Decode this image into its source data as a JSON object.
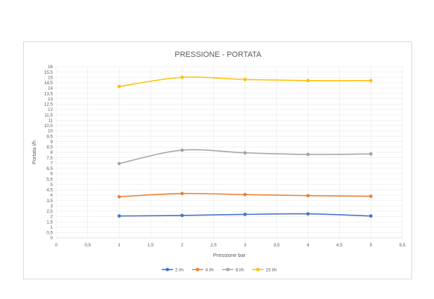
{
  "chart_data": {
    "type": "line",
    "title": "PRESSIONE - PORTATA",
    "xlabel": "Pressione bar",
    "ylabel": "Portata l/h",
    "xlim": [
      0,
      5.5
    ],
    "ylim": [
      0,
      16
    ],
    "x_ticks": [
      "0",
      "0,5",
      "1",
      "1,5",
      "2",
      "2,5",
      "3",
      "3,5",
      "4",
      "4,5",
      "5",
      "5,5"
    ],
    "y_ticks": [
      "0",
      "0,5",
      "1",
      "1,5",
      "2",
      "2,5",
      "3",
      "3,5",
      "4",
      "4,5",
      "5",
      "5,5",
      "6",
      "6,5",
      "7",
      "7,5",
      "8",
      "8,5",
      "9",
      "9,5",
      "10",
      "10,5",
      "11",
      "11,5",
      "12",
      "12,5",
      "13",
      "13,5",
      "14",
      "14,5",
      "15",
      "15,5",
      "16"
    ],
    "grid": true,
    "smooth": true,
    "legend_position": "bottom",
    "x": [
      1,
      2,
      3,
      4,
      5
    ],
    "series": [
      {
        "name": "2 l/h",
        "color": "#4472C4",
        "values": [
          2.05,
          2.1,
          2.2,
          2.25,
          2.05
        ]
      },
      {
        "name": "4 l/h",
        "color": "#ED7D31",
        "values": [
          3.85,
          4.15,
          4.05,
          3.95,
          3.9
        ]
      },
      {
        "name": "8 l/h",
        "color": "#A5A5A5",
        "values": [
          6.95,
          8.2,
          7.95,
          7.8,
          7.85
        ]
      },
      {
        "name": "15 l/h",
        "color": "#FFC000",
        "values": [
          14.15,
          15.0,
          14.8,
          14.7,
          14.7
        ]
      }
    ]
  }
}
